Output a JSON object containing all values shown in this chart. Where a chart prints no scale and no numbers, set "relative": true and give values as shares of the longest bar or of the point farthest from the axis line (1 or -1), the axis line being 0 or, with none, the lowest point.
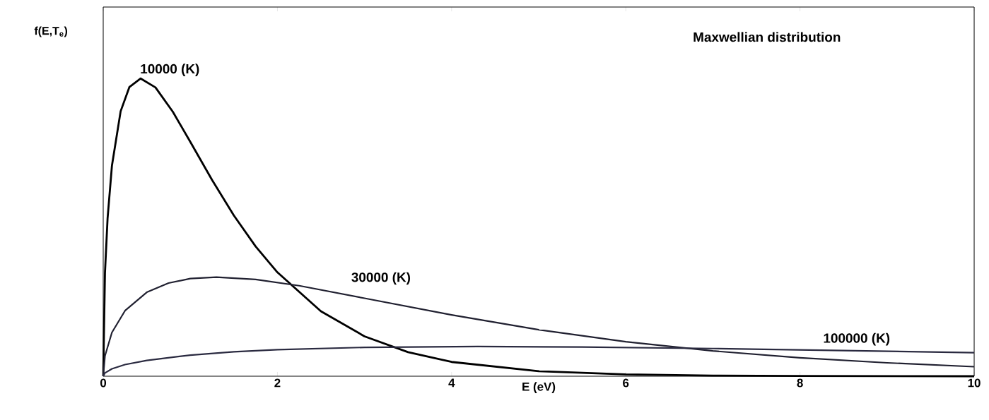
{
  "chart_data": {
    "type": "line",
    "relative": true,
    "title": "Maxwellian distribution",
    "xlabel": "E (eV)",
    "ylabel": "f(E,T$_{e}$)",
    "xlim": [
      0,
      10
    ],
    "xticks": [
      0,
      2,
      4,
      6,
      8,
      10
    ],
    "grid": false,
    "marker": "none",
    "line_style": "solid",
    "series": [
      {
        "name": "10000  (K)",
        "color": "#000000",
        "x": [
          0,
          0.02,
          0.05,
          0.1,
          0.2,
          0.3,
          0.43,
          0.6,
          0.8,
          1.0,
          1.25,
          1.5,
          1.75,
          2.0,
          2.5,
          3.0,
          3.5,
          4,
          5,
          6,
          7,
          8,
          10
        ],
        "values": [
          0,
          0.347,
          0.53,
          0.707,
          0.89,
          0.971,
          1,
          0.97,
          0.888,
          0.787,
          0.659,
          0.54,
          0.436,
          0.349,
          0.218,
          0.134,
          0.081,
          0.048,
          0.017,
          0.006,
          0.002,
          0.001,
          0
        ]
      },
      {
        "name": "30000  (K)",
        "color": "#202030",
        "x": [
          0,
          0.02,
          0.1,
          0.25,
          0.5,
          0.75,
          1.0,
          1.3,
          1.75,
          2.25,
          3,
          4,
          5,
          6,
          7,
          8,
          9,
          10
        ],
        "values": [
          0,
          0.068,
          0.147,
          0.22,
          0.282,
          0.313,
          0.328,
          0.333,
          0.325,
          0.304,
          0.262,
          0.206,
          0.156,
          0.116,
          0.085,
          0.062,
          0.045,
          0.032
        ]
      },
      {
        "name": "100000  (K)",
        "color": "#2a2a40",
        "x": [
          0,
          0.02,
          0.1,
          0.25,
          0.5,
          1,
          1.5,
          2,
          3,
          4.3,
          5.5,
          7,
          8.5,
          10
        ],
        "values": [
          0,
          0.011,
          0.025,
          0.039,
          0.053,
          0.071,
          0.082,
          0.089,
          0.097,
          0.1,
          0.098,
          0.093,
          0.086,
          0.079
        ]
      }
    ]
  }
}
